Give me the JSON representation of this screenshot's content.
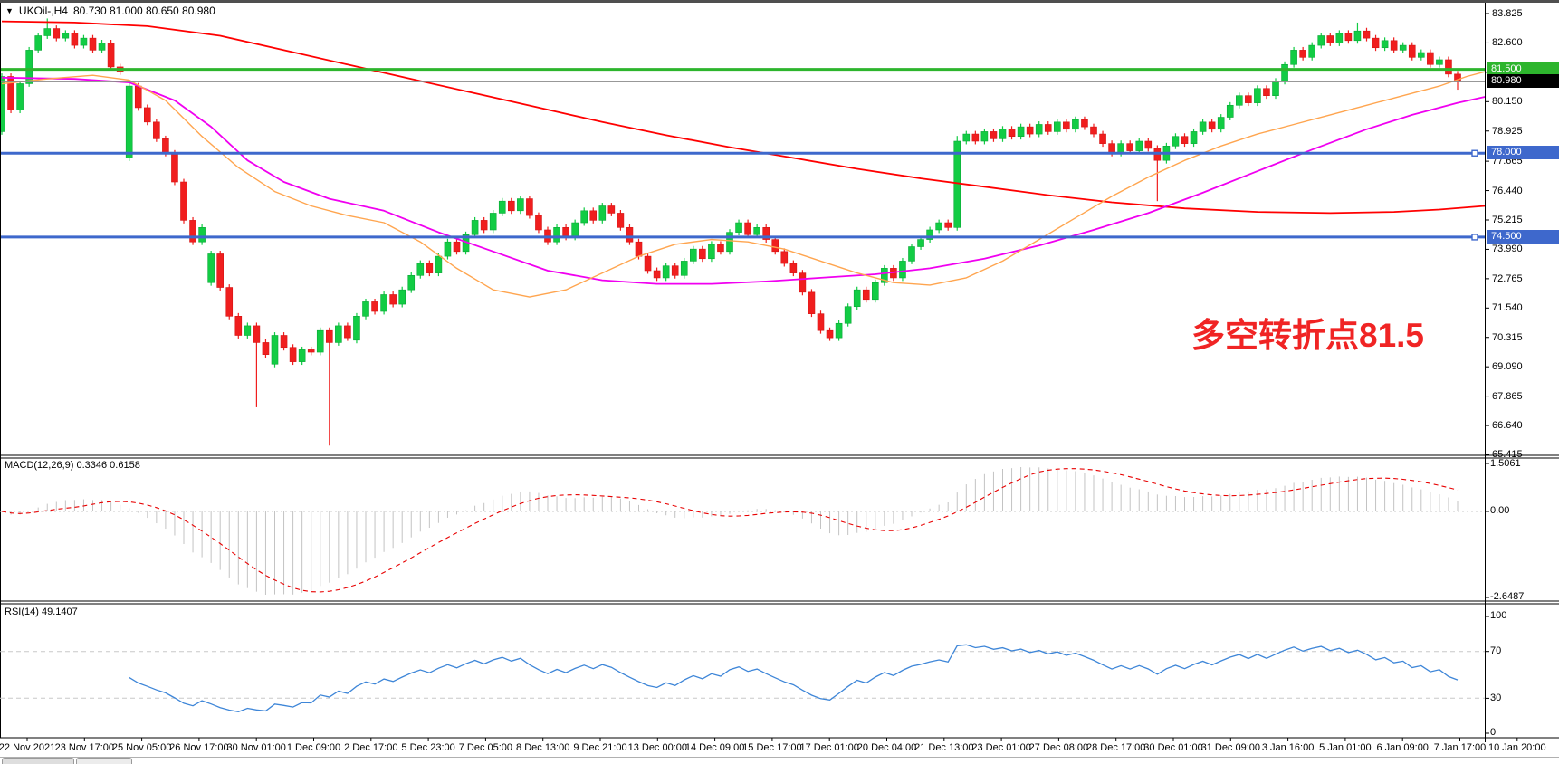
{
  "header": {
    "symbol_period": "UKOil-,H4",
    "ohlc": "80.730 81.000 80.650 80.980"
  },
  "annotation": {
    "text": "多空转折点81.5",
    "color": "#F02424"
  },
  "colors": {
    "up_fill": "#12CC44",
    "up_stroke": "#0BA837",
    "down_fill": "#F01E1E",
    "down_stroke": "#D41414",
    "green_line": "#2DB52D",
    "blue_line": "#3E68CC",
    "price_line": "#8A8A8A",
    "price_badge_bg": "#000000",
    "axis_line": "#000000",
    "macd_hist": "#C3C3C3",
    "macd_signal": "#E80000",
    "rsi_line": "#3E86D8",
    "level_dash": "#C8C8C8"
  },
  "chart_data": {
    "type": "candlestick",
    "title": "UKOil-,H4",
    "price_axis_ticks": [
      "83.825",
      "82.600",
      "81.375",
      "80.150",
      "78.925",
      "77.665",
      "76.440",
      "75.215",
      "73.990",
      "72.765",
      "71.540",
      "70.315",
      "69.090",
      "67.865",
      "66.640",
      "65.415"
    ],
    "hlines": [
      {
        "name": "resistance-line",
        "label": "81.500",
        "price": 81.5,
        "color": "#2DB52D",
        "width": 3,
        "marker": false,
        "badge_bg": "#2DB52D"
      },
      {
        "name": "support-line-1",
        "label": "78.000",
        "price": 78.0,
        "color": "#3E68CC",
        "width": 3,
        "marker": true,
        "badge_bg": "#3E68CC"
      },
      {
        "name": "support-line-2",
        "label": "74.500",
        "price": 74.5,
        "color": "#3E68CC",
        "width": 3,
        "marker": true,
        "badge_bg": "#3E68CC"
      },
      {
        "name": "current-price-line",
        "label": "80.980",
        "price": 80.98,
        "color": "#8A8A8A",
        "width": 1,
        "marker": false,
        "badge_bg": "#000000"
      }
    ],
    "time_labels": [
      "22 Nov 2021",
      "23 Nov 17:00",
      "25 Nov 05:00",
      "26 Nov 17:00",
      "30 Nov 01:00",
      "1 Dec 09:00",
      "2 Dec 17:00",
      "5 Dec 23:00",
      "7 Dec 05:00",
      "8 Dec 13:00",
      "9 Dec 21:00",
      "13 Dec 00:00",
      "14 Dec 09:00",
      "15 Dec 17:00",
      "17 Dec 01:00",
      "20 Dec 04:00",
      "21 Dec 13:00",
      "23 Dec 01:00",
      "27 Dec 08:00",
      "28 Dec 17:00",
      "30 Dec 01:00",
      "31 Dec 09:00",
      "3 Jan 16:00",
      "5 Jan 01:00",
      "6 Jan 09:00",
      "7 Jan 17:00",
      "10 Jan 20:00"
    ],
    "first_open": 78.9,
    "wick_pad": 0.13,
    "closes": [
      81.2,
      79.8,
      80.9,
      82.3,
      82.9,
      83.2,
      82.8,
      83.0,
      82.5,
      82.8,
      82.3,
      82.6,
      81.6,
      81.4,
      80.8,
      79.9,
      79.3,
      78.6,
      78.0,
      76.8,
      75.2,
      74.3,
      74.9,
      73.8,
      72.4,
      71.2,
      70.4,
      70.8,
      70.1,
      69.6,
      70.4,
      69.9,
      69.3,
      69.8,
      69.7,
      70.6,
      70.1,
      70.8,
      70.3,
      71.2,
      71.8,
      71.4,
      72.1,
      71.7,
      72.3,
      72.9,
      73.4,
      73.0,
      73.7,
      74.3,
      73.9,
      74.6,
      75.2,
      74.8,
      75.5,
      76.0,
      75.6,
      76.1,
      75.4,
      74.8,
      74.3,
      74.9,
      74.5,
      75.1,
      75.6,
      75.2,
      75.8,
      75.5,
      74.9,
      74.3,
      73.7,
      73.1,
      72.8,
      73.3,
      72.9,
      73.5,
      74.0,
      73.6,
      74.2,
      73.9,
      74.7,
      75.1,
      74.6,
      74.9,
      74.4,
      73.9,
      73.4,
      73.0,
      72.2,
      71.3,
      70.6,
      70.3,
      70.9,
      71.6,
      72.3,
      71.9,
      72.6,
      73.2,
      72.8,
      73.5,
      74.1,
      74.4,
      74.8,
      75.1,
      74.9,
      78.5,
      78.8,
      78.5,
      78.9,
      78.6,
      79.0,
      78.7,
      79.1,
      78.8,
      79.2,
      78.9,
      79.3,
      79.0,
      79.4,
      79.1,
      78.8,
      78.4,
      78.0,
      78.4,
      78.1,
      78.5,
      78.2,
      77.7,
      78.3,
      78.7,
      78.4,
      78.9,
      79.3,
      79.0,
      79.5,
      80.0,
      80.4,
      80.1,
      80.7,
      80.4,
      81.0,
      81.7,
      82.3,
      82.0,
      82.5,
      82.9,
      82.6,
      83.0,
      82.7,
      83.1,
      82.8,
      82.4,
      82.7,
      82.3,
      82.5,
      82.0,
      82.2,
      81.7,
      81.9,
      81.3,
      80.98
    ],
    "open_overrides": {
      "14": 77.8,
      "23": 72.6,
      "30": 69.2,
      "39": 70.2
    },
    "wick_overrides": {
      "5": {
        "high": 83.62
      },
      "28": {
        "low": 67.4
      },
      "36": {
        "low": 65.8
      },
      "105": {
        "high": 78.72
      },
      "127": {
        "low": 76.0
      },
      "149": {
        "high": 83.45
      },
      "160": {
        "low": 80.65
      }
    },
    "ma_lines": [
      {
        "name": "slow-ma-red",
        "color": "#FF0000",
        "width": 1.8,
        "points": [
          [
            0,
            83.5
          ],
          [
            8,
            83.45
          ],
          [
            16,
            83.3
          ],
          [
            24,
            82.9
          ],
          [
            31,
            82.3
          ],
          [
            38,
            81.7
          ],
          [
            45,
            81.1
          ],
          [
            52,
            80.5
          ],
          [
            59,
            79.9
          ],
          [
            66,
            79.3
          ],
          [
            73,
            78.75
          ],
          [
            80,
            78.25
          ],
          [
            87,
            77.8
          ],
          [
            94,
            77.35
          ],
          [
            101,
            76.95
          ],
          [
            108,
            76.6
          ],
          [
            115,
            76.25
          ],
          [
            122,
            75.95
          ],
          [
            130,
            75.7
          ],
          [
            138,
            75.55
          ],
          [
            146,
            75.5
          ],
          [
            153,
            75.55
          ],
          [
            158,
            75.65
          ],
          [
            163,
            75.8
          ]
        ]
      },
      {
        "name": "mid-ma-magenta",
        "color": "#F000F0",
        "width": 1.8,
        "points": [
          [
            0,
            81.15
          ],
          [
            8,
            81.1
          ],
          [
            14,
            80.95
          ],
          [
            19,
            80.2
          ],
          [
            23,
            79.1
          ],
          [
            27,
            77.7
          ],
          [
            31,
            76.8
          ],
          [
            36,
            76.1
          ],
          [
            42,
            75.6
          ],
          [
            48,
            74.7
          ],
          [
            54,
            73.9
          ],
          [
            60,
            73.1
          ],
          [
            66,
            72.7
          ],
          [
            72,
            72.55
          ],
          [
            78,
            72.55
          ],
          [
            84,
            72.65
          ],
          [
            90,
            72.8
          ],
          [
            96,
            72.95
          ],
          [
            102,
            73.2
          ],
          [
            108,
            73.6
          ],
          [
            114,
            74.15
          ],
          [
            120,
            74.8
          ],
          [
            126,
            75.5
          ],
          [
            132,
            76.35
          ],
          [
            138,
            77.25
          ],
          [
            144,
            78.15
          ],
          [
            150,
            79.0
          ],
          [
            155,
            79.6
          ],
          [
            160,
            80.1
          ],
          [
            163,
            80.35
          ]
        ]
      },
      {
        "name": "fast-ma-orange",
        "color": "#FFA54F",
        "width": 1.4,
        "points": [
          [
            0,
            80.9
          ],
          [
            5,
            81.1
          ],
          [
            10,
            81.25
          ],
          [
            14,
            81.05
          ],
          [
            18,
            80.2
          ],
          [
            22,
            78.7
          ],
          [
            26,
            77.4
          ],
          [
            30,
            76.4
          ],
          [
            34,
            75.8
          ],
          [
            38,
            75.4
          ],
          [
            42,
            75.1
          ],
          [
            46,
            74.3
          ],
          [
            50,
            73.2
          ],
          [
            54,
            72.3
          ],
          [
            58,
            72.0
          ],
          [
            62,
            72.3
          ],
          [
            66,
            73.0
          ],
          [
            70,
            73.7
          ],
          [
            74,
            74.2
          ],
          [
            78,
            74.4
          ],
          [
            82,
            74.3
          ],
          [
            86,
            74.0
          ],
          [
            90,
            73.5
          ],
          [
            94,
            73.0
          ],
          [
            98,
            72.6
          ],
          [
            102,
            72.5
          ],
          [
            106,
            72.8
          ],
          [
            110,
            73.5
          ],
          [
            114,
            74.4
          ],
          [
            118,
            75.3
          ],
          [
            122,
            76.2
          ],
          [
            126,
            77.0
          ],
          [
            130,
            77.7
          ],
          [
            134,
            78.3
          ],
          [
            138,
            78.8
          ],
          [
            142,
            79.2
          ],
          [
            146,
            79.6
          ],
          [
            150,
            80.0
          ],
          [
            154,
            80.4
          ],
          [
            158,
            80.8
          ],
          [
            161,
            81.2
          ],
          [
            163,
            81.4
          ]
        ]
      }
    ],
    "macd": {
      "label": "MACD(12,26,9) 0.3346 0.6158",
      "fast": 12,
      "slow": 26,
      "signal_period": 9,
      "value": 0.3346,
      "signal_value": 0.6158,
      "axis": [
        "1.5061",
        "0.00",
        "-2.6487"
      ]
    },
    "rsi": {
      "label": "RSI(14) 49.1407",
      "period": 14,
      "value": 49.1407,
      "axis": [
        "100",
        "70",
        "30",
        "0"
      ],
      "levels": [
        70,
        30
      ]
    }
  }
}
